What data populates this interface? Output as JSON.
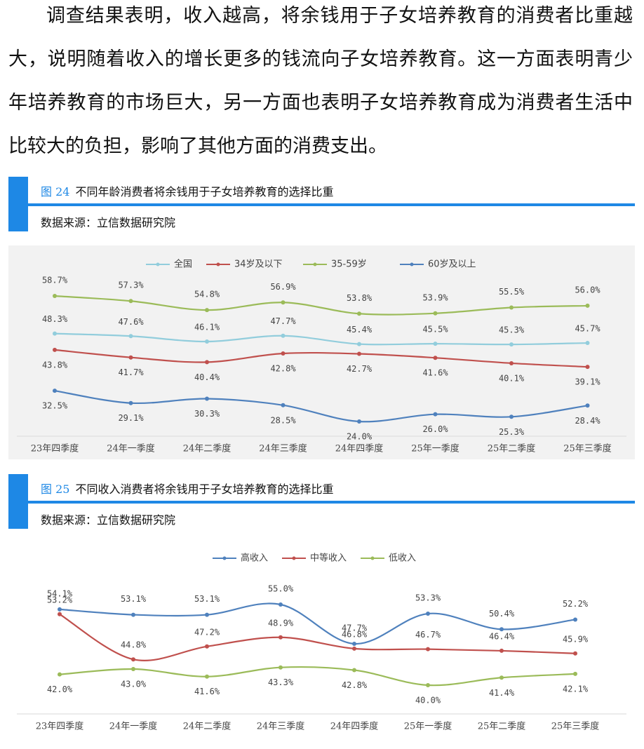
{
  "paragraph": "调查结果表明，收入越高，将余钱用于子女培养教育的消费者比重越大，说明随着收入的增长更多的钱流向子女培养教育。这一方面表明青少年培养教育的市场巨大，另一方面也表明子女培养教育成为消费者生活中比较大的负担，影响了其他方面的消费支出。",
  "chart_data": [
    {
      "type": "line",
      "figure_label": "图 24",
      "title": "不同年龄消费者将余钱用于子女培养教育的选择比重",
      "source": "数据来源：立信数据研究院",
      "categories": [
        "23年四季度",
        "24年一季度",
        "24年二季度",
        "24年三季度",
        "24年四季度",
        "25年一季度",
        "25年二季度",
        "25年三季度"
      ],
      "series": [
        {
          "name": "全国",
          "color": "#92cddc",
          "values": [
            48.3,
            47.6,
            46.1,
            47.7,
            45.4,
            45.5,
            45.3,
            45.7
          ],
          "value_labels": [
            "48.3%",
            "47.6%",
            "46.1%",
            "47.7%",
            "45.4%",
            "45.5%",
            "45.3%",
            "45.7%"
          ]
        },
        {
          "name": "34岁及以下",
          "color": "#c0504d",
          "values": [
            43.8,
            41.7,
            40.4,
            42.8,
            42.7,
            41.6,
            40.1,
            39.1
          ],
          "value_labels": [
            "43.8%",
            "41.7%",
            "40.4%",
            "42.8%",
            "42.7%",
            "41.6%",
            "40.1%",
            "39.1%"
          ]
        },
        {
          "name": "35-59岁",
          "color": "#9bbb59",
          "values": [
            58.7,
            57.3,
            54.8,
            56.9,
            53.8,
            53.9,
            55.5,
            56.0
          ],
          "value_labels": [
            "58.7%",
            "57.3%",
            "54.8%",
            "56.9%",
            "53.8%",
            "53.9%",
            "55.5%",
            "56.0%"
          ]
        },
        {
          "name": "60岁及以上",
          "color": "#4f81bd",
          "values": [
            32.5,
            29.1,
            30.3,
            28.5,
            24.0,
            26.0,
            25.3,
            28.4
          ],
          "value_labels": [
            "32.5%",
            "29.1%",
            "30.3%",
            "28.5%",
            "24.0%",
            "26.0%",
            "25.3%",
            "28.4%"
          ]
        }
      ]
    },
    {
      "type": "line",
      "figure_label": "图 25",
      "title": "不同收入消费者将余钱用于子女培养教育的选择比重",
      "source": "数据来源：立信数据研究院",
      "categories": [
        "23年四季度",
        "24年一季度",
        "24年二季度",
        "24年三季度",
        "24年四季度",
        "25年一季度",
        "25年二季度",
        "25年三季度"
      ],
      "series": [
        {
          "name": "高收入",
          "color": "#4f81bd",
          "values": [
            54.1,
            53.1,
            53.1,
            55.0,
            47.7,
            53.3,
            50.4,
            52.2
          ],
          "value_labels": [
            "54.1%",
            "53.1%",
            "53.1%",
            "55.0%",
            "47.7%",
            "53.3%",
            "50.4%",
            "52.2%"
          ]
        },
        {
          "name": "中等收入",
          "color": "#c0504d",
          "values": [
            53.2,
            44.8,
            47.2,
            48.9,
            46.8,
            46.7,
            46.4,
            45.9
          ],
          "value_labels": [
            "53.2%",
            "44.8%",
            "47.2%",
            "48.9%",
            "46.8%",
            "46.7%",
            "46.4%",
            "45.9%"
          ]
        },
        {
          "name": "低收入",
          "color": "#9bbb59",
          "values": [
            42.0,
            43.0,
            41.6,
            43.3,
            42.8,
            40.0,
            41.4,
            42.1
          ],
          "value_labels": [
            "42.0%",
            "43.0%",
            "41.6%",
            "43.3%",
            "42.8%",
            "40.0%",
            "41.4%",
            "42.1%"
          ]
        }
      ]
    }
  ]
}
